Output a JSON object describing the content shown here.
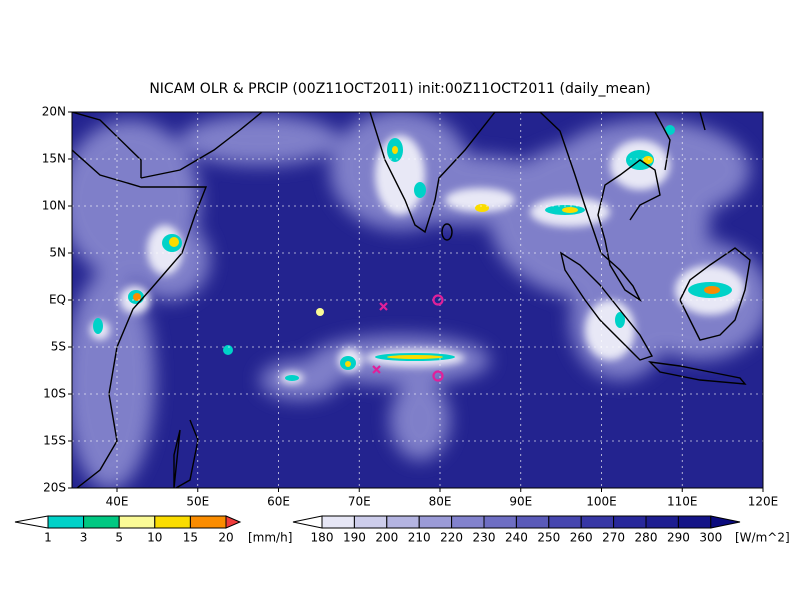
{
  "title": "NICAM OLR & PRCIP (00Z11OCT2011) init:00Z11OCT2011 (daily_mean)",
  "map": {
    "lat_labels": [
      "20N",
      "15N",
      "10N",
      "5N",
      "EQ",
      "5S",
      "10S",
      "15S",
      "20S"
    ],
    "lon_labels": [
      "40E",
      "50E",
      "60E",
      "70E",
      "80E",
      "90E",
      "100E",
      "110E",
      "120E"
    ]
  },
  "precip_colorbar": {
    "ticks": [
      1,
      3,
      5,
      10,
      15,
      20
    ],
    "unit": "[mm/h]",
    "colors": [
      "#ffffff",
      "#00d2c8",
      "#00c882",
      "#fafa96",
      "#fadc00",
      "#fa8c00",
      "#f03c3c"
    ]
  },
  "olr_colorbar": {
    "ticks": [
      180,
      190,
      200,
      210,
      220,
      230,
      240,
      250,
      260,
      270,
      280,
      290,
      300
    ],
    "unit": "[W/m^2]",
    "colors": [
      "#ffffff",
      "#e6e6f5",
      "#cdcdeb",
      "#b4b4e1",
      "#9b9bd7",
      "#8282cd",
      "#6e6ec3",
      "#5a5ab9",
      "#4646af",
      "#3737a5",
      "#28289b",
      "#1e1e91",
      "#141487",
      "#0a0a7d"
    ]
  }
}
